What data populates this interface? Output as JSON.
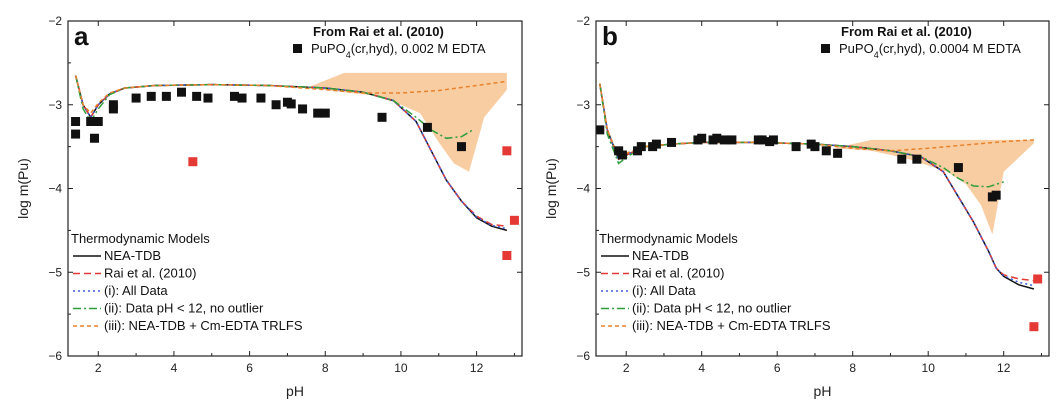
{
  "chart_data": [
    {
      "type": "line",
      "panel_label": "a",
      "xlabel": "pH",
      "ylabel": "log m(Pu)",
      "xlim": [
        1.2,
        13.2
      ],
      "ylim": [
        -6,
        -2
      ],
      "xticks": [
        2,
        4,
        6,
        8,
        10,
        12
      ],
      "yticks": [
        -6,
        -5,
        -4,
        -3,
        -2
      ],
      "grid": false,
      "source_title": "From Rai et al. (2010)",
      "source_label_main": "PuPO",
      "source_label_sub": "4",
      "source_label_rest": "(cr,hyd), 0.002 M EDTA",
      "legend_title": "Thermodynamic Models",
      "legend_placement": "bottom-left",
      "data_points": {
        "color": "#111111",
        "x": [
          1.4,
          1.4,
          1.8,
          1.9,
          2.0,
          2.4,
          2.4,
          3.0,
          3.4,
          3.8,
          4.2,
          4.6,
          4.9,
          5.6,
          5.8,
          6.3,
          6.7,
          7.0,
          7.1,
          7.4,
          7.8,
          8.0,
          9.5,
          10.7,
          11.6
        ],
        "y": [
          -3.2,
          -3.35,
          -3.2,
          -3.4,
          -3.2,
          -3.05,
          -3.0,
          -2.92,
          -2.9,
          -2.9,
          -2.85,
          -2.9,
          -2.92,
          -2.9,
          -2.92,
          -2.92,
          -3.0,
          -2.97,
          -2.99,
          -3.05,
          -3.1,
          -3.1,
          -3.15,
          -3.27,
          -3.5
        ]
      },
      "outliers": {
        "color": "#e53935",
        "x": [
          4.5,
          12.8,
          12.8,
          13.0
        ],
        "y": [
          -3.68,
          -3.55,
          -4.8,
          -4.38
        ]
      },
      "uncertainty_band": {
        "color": "#f8c898",
        "x": [
          7.5,
          8.5,
          9.5,
          10.5,
          11.0,
          11.4,
          11.8,
          12.2,
          12.8,
          12.8,
          12.2,
          11.8,
          11.4,
          11.0,
          10.5,
          9.5,
          8.5,
          7.5
        ],
        "y": [
          -2.8,
          -2.62,
          -2.62,
          -2.62,
          -2.62,
          -2.62,
          -2.62,
          -2.62,
          -2.62,
          -2.82,
          -3.15,
          -3.8,
          -3.7,
          -3.45,
          -3.1,
          -2.9,
          -2.85,
          -2.8
        ]
      },
      "series": [
        {
          "name": "NEA-TDB",
          "color": "#111111",
          "dash": "none",
          "width": 1.5,
          "x": [
            1.4,
            1.6,
            1.8,
            2.0,
            2.3,
            2.7,
            3.5,
            5.0,
            6.5,
            8.0,
            9.0,
            9.8,
            10.4,
            10.8,
            11.2,
            11.6,
            12.0,
            12.4,
            12.8
          ],
          "y": [
            -2.65,
            -3.0,
            -3.15,
            -3.0,
            -2.87,
            -2.8,
            -2.77,
            -2.76,
            -2.77,
            -2.8,
            -2.85,
            -2.95,
            -3.2,
            -3.55,
            -3.9,
            -4.15,
            -4.35,
            -4.45,
            -4.5
          ]
        },
        {
          "name": "Rai et al. (2010)",
          "color": "#e53935",
          "dash": "7,4",
          "width": 1.5,
          "x": [
            1.4,
            1.6,
            1.8,
            2.0,
            2.3,
            2.7,
            3.5,
            5.0,
            6.5,
            8.0,
            9.0,
            9.8,
            10.4,
            10.8,
            11.2,
            11.6,
            12.0,
            12.4,
            12.8
          ],
          "y": [
            -2.65,
            -3.0,
            -3.15,
            -3.0,
            -2.87,
            -2.8,
            -2.77,
            -2.76,
            -2.77,
            -2.8,
            -2.85,
            -2.95,
            -3.2,
            -3.55,
            -3.9,
            -4.15,
            -4.33,
            -4.43,
            -4.45
          ]
        },
        {
          "name": "(i): All Data",
          "color": "#3b5bd9",
          "dash": "2,3",
          "width": 1.5,
          "x": [
            1.4,
            1.6,
            1.8,
            2.0,
            2.3,
            2.7,
            3.5,
            5.0,
            6.5,
            8.0,
            9.0,
            9.8,
            10.4,
            10.8,
            11.2,
            11.6,
            12.0,
            12.4,
            12.8
          ],
          "y": [
            -2.65,
            -3.0,
            -3.15,
            -3.0,
            -2.87,
            -2.8,
            -2.77,
            -2.76,
            -2.77,
            -2.8,
            -2.85,
            -2.95,
            -3.2,
            -3.55,
            -3.9,
            -4.15,
            -4.34,
            -4.44,
            -4.48
          ]
        },
        {
          "name": "(ii): Data pH < 12, no outlier",
          "color": "#2e9e3a",
          "dash": "8,3,2,3",
          "width": 1.5,
          "x": [
            1.4,
            1.6,
            1.8,
            2.0,
            2.3,
            2.7,
            3.5,
            5.0,
            6.5,
            8.0,
            9.0,
            9.8,
            10.4,
            10.8,
            11.2,
            11.6,
            11.9
          ],
          "y": [
            -2.65,
            -3.05,
            -3.2,
            -3.05,
            -2.88,
            -2.8,
            -2.77,
            -2.76,
            -2.77,
            -2.8,
            -2.85,
            -2.95,
            -3.15,
            -3.3,
            -3.4,
            -3.38,
            -3.3
          ]
        },
        {
          "name": "(iii): NEA-TDB + Cm-EDTA TRLFS",
          "color": "#e8822a",
          "dash": "4,3",
          "width": 1.5,
          "x": [
            1.4,
            1.6,
            1.8,
            2.0,
            2.3,
            2.7,
            3.5,
            5.0,
            6.5,
            8.0,
            9.0,
            10.0,
            11.0,
            12.0,
            12.8
          ],
          "y": [
            -2.65,
            -3.0,
            -3.1,
            -2.98,
            -2.86,
            -2.8,
            -2.77,
            -2.76,
            -2.77,
            -2.82,
            -2.86,
            -2.86,
            -2.83,
            -2.77,
            -2.72
          ]
        }
      ]
    },
    {
      "type": "line",
      "panel_label": "b",
      "xlabel": "pH",
      "ylabel": "log m(Pu)",
      "xlim": [
        1.2,
        13.2
      ],
      "ylim": [
        -6,
        -2
      ],
      "xticks": [
        2,
        4,
        6,
        8,
        10,
        12
      ],
      "yticks": [
        -6,
        -5,
        -4,
        -3,
        -2
      ],
      "grid": false,
      "source_title": "From Rai et al. (2010)",
      "source_label_main": "PuPO",
      "source_label_sub": "4",
      "source_label_rest": "(cr,hyd), 0.0004 M EDTA",
      "legend_title": "Thermodynamic Models",
      "legend_placement": "bottom-left",
      "data_points": {
        "color": "#111111",
        "x": [
          1.3,
          1.8,
          1.9,
          2.3,
          2.4,
          2.7,
          2.8,
          3.2,
          3.9,
          4.0,
          4.3,
          4.4,
          4.6,
          4.8,
          5.5,
          5.6,
          5.8,
          5.9,
          6.5,
          6.9,
          7.0,
          7.3,
          7.6,
          9.3,
          9.7,
          10.8,
          11.7,
          11.8
        ],
        "y": [
          -3.3,
          -3.55,
          -3.6,
          -3.55,
          -3.5,
          -3.5,
          -3.47,
          -3.45,
          -3.42,
          -3.4,
          -3.42,
          -3.4,
          -3.42,
          -3.42,
          -3.42,
          -3.42,
          -3.44,
          -3.42,
          -3.5,
          -3.47,
          -3.5,
          -3.55,
          -3.58,
          -3.65,
          -3.65,
          -3.75,
          -4.1,
          -4.08
        ]
      },
      "outliers": {
        "color": "#e53935",
        "x": [
          12.9,
          12.8
        ],
        "y": [
          -5.08,
          -5.65
        ]
      },
      "uncertainty_band": {
        "color": "#f8c898",
        "x": [
          7.5,
          8.5,
          9.5,
          10.5,
          11.0,
          11.4,
          11.7,
          12.0,
          12.8,
          12.8,
          12.0,
          11.7,
          11.4,
          11.0,
          10.5,
          9.5,
          8.5,
          7.5
        ],
        "y": [
          -3.52,
          -3.42,
          -3.42,
          -3.42,
          -3.42,
          -3.42,
          -3.42,
          -3.42,
          -3.42,
          -3.46,
          -3.8,
          -4.55,
          -4.2,
          -3.95,
          -3.8,
          -3.65,
          -3.55,
          -3.52
        ]
      },
      "series": [
        {
          "name": "NEA-TDB",
          "color": "#111111",
          "dash": "none",
          "width": 1.5,
          "x": [
            1.3,
            1.5,
            1.8,
            2.1,
            2.5,
            3.2,
            4.0,
            5.5,
            7.0,
            8.0,
            9.0,
            9.8,
            10.4,
            10.8,
            11.2,
            11.6,
            11.8,
            12.0,
            12.4,
            12.8
          ],
          "y": [
            -2.75,
            -3.3,
            -3.65,
            -3.58,
            -3.5,
            -3.47,
            -3.45,
            -3.45,
            -3.47,
            -3.5,
            -3.55,
            -3.62,
            -3.8,
            -4.1,
            -4.4,
            -4.75,
            -4.95,
            -5.05,
            -5.15,
            -5.2
          ]
        },
        {
          "name": "Rai et al. (2010)",
          "color": "#e53935",
          "dash": "7,4",
          "width": 1.5,
          "x": [
            1.3,
            1.5,
            1.8,
            2.1,
            2.5,
            3.2,
            4.0,
            5.5,
            7.0,
            8.0,
            9.0,
            9.8,
            10.4,
            10.8,
            11.2,
            11.6,
            11.8,
            12.0,
            12.4,
            12.8
          ],
          "y": [
            -2.75,
            -3.3,
            -3.65,
            -3.58,
            -3.5,
            -3.47,
            -3.45,
            -3.45,
            -3.47,
            -3.5,
            -3.55,
            -3.62,
            -3.8,
            -4.1,
            -4.4,
            -4.75,
            -4.95,
            -5.03,
            -5.08,
            -5.1
          ]
        },
        {
          "name": "(i): All Data",
          "color": "#3b5bd9",
          "dash": "2,3",
          "width": 1.5,
          "x": [
            1.3,
            1.5,
            1.8,
            2.1,
            2.5,
            3.2,
            4.0,
            5.5,
            7.0,
            8.0,
            9.0,
            9.8,
            10.4,
            10.8,
            11.2,
            11.6,
            11.8,
            12.0,
            12.4,
            12.8
          ],
          "y": [
            -2.75,
            -3.3,
            -3.65,
            -3.58,
            -3.5,
            -3.47,
            -3.45,
            -3.45,
            -3.47,
            -3.5,
            -3.55,
            -3.62,
            -3.8,
            -4.1,
            -4.4,
            -4.75,
            -4.95,
            -5.04,
            -5.12,
            -5.16
          ]
        },
        {
          "name": "(ii): Data pH < 12, no outlier",
          "color": "#2e9e3a",
          "dash": "8,3,2,3",
          "width": 1.5,
          "x": [
            1.3,
            1.5,
            1.8,
            2.1,
            2.5,
            3.2,
            4.0,
            5.5,
            7.0,
            8.0,
            9.0,
            9.8,
            10.4,
            10.8,
            11.2,
            11.6,
            12.0
          ],
          "y": [
            -2.75,
            -3.35,
            -3.7,
            -3.6,
            -3.5,
            -3.47,
            -3.45,
            -3.45,
            -3.47,
            -3.5,
            -3.55,
            -3.62,
            -3.75,
            -3.88,
            -3.97,
            -3.98,
            -3.92
          ]
        },
        {
          "name": "(iii): NEA-TDB + Cm-EDTA TRLFS",
          "color": "#e8822a",
          "dash": "4,3",
          "width": 1.5,
          "x": [
            1.3,
            1.5,
            1.8,
            2.1,
            2.5,
            3.2,
            4.0,
            5.5,
            7.0,
            8.0,
            9.0,
            10.0,
            11.0,
            12.0,
            12.8
          ],
          "y": [
            -2.75,
            -3.3,
            -3.62,
            -3.56,
            -3.5,
            -3.47,
            -3.45,
            -3.45,
            -3.47,
            -3.52,
            -3.55,
            -3.52,
            -3.48,
            -3.44,
            -3.42
          ]
        }
      ]
    }
  ]
}
